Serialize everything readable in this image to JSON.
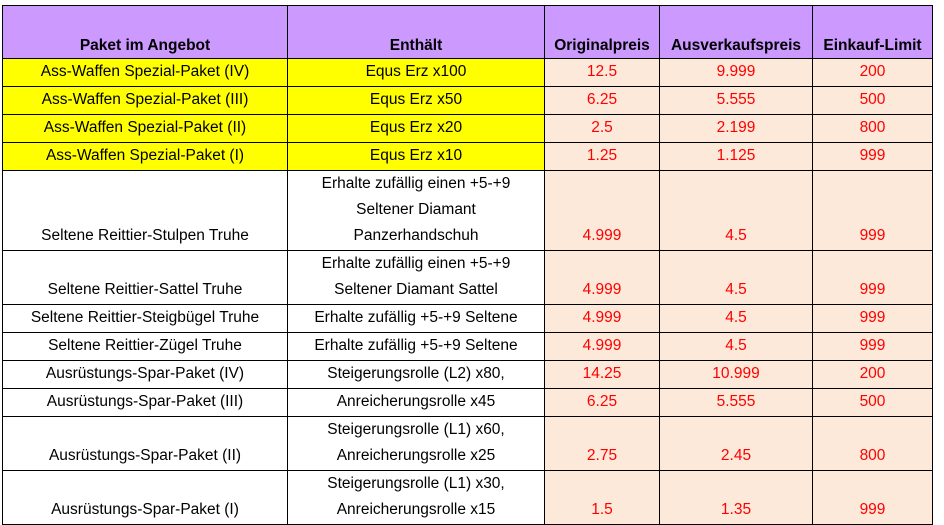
{
  "columns": [
    "Paket im Angebot",
    "Enthält",
    "Originalpreis",
    "Ausverkaufspreis",
    "Einkauf-Limit"
  ],
  "rows": [
    {
      "name": "Ass-Waffen Spezial-Paket (IV)",
      "contents": [
        "Equs Erz x100"
      ],
      "original": "12.5",
      "sale": "9.999",
      "limit": "200",
      "highlight": true
    },
    {
      "name": "Ass-Waffen Spezial-Paket (III)",
      "contents": [
        "Equs Erz x50"
      ],
      "original": "6.25",
      "sale": "5.555",
      "limit": "500",
      "highlight": true
    },
    {
      "name": "Ass-Waffen Spezial-Paket (II)",
      "contents": [
        "Equs Erz x20"
      ],
      "original": "2.5",
      "sale": "2.199",
      "limit": "800",
      "highlight": true
    },
    {
      "name": "Ass-Waffen Spezial-Paket (I)",
      "contents": [
        "Equs Erz x10"
      ],
      "original": "1.25",
      "sale": "1.125",
      "limit": "999",
      "highlight": true
    },
    {
      "name": "Seltene Reittier-Stulpen Truhe",
      "contents": [
        "Erhalte zufällig einen +5-+9",
        "Seltener Diamant",
        "Panzerhandschuh"
      ],
      "original": "4.999",
      "sale": "4.5",
      "limit": "999",
      "highlight": false
    },
    {
      "name": "Seltene Reittier-Sattel Truhe",
      "contents": [
        "Erhalte zufällig einen +5-+9",
        "Seltener Diamant Sattel"
      ],
      "original": "4.999",
      "sale": "4.5",
      "limit": "999",
      "highlight": false
    },
    {
      "name": "Seltene Reittier-Steigbügel Truhe",
      "contents": [
        "Erhalte zufällig +5-+9 Seltene"
      ],
      "original": "4.999",
      "sale": "4.5",
      "limit": "999",
      "highlight": false
    },
    {
      "name": "Seltene Reittier-Zügel Truhe",
      "contents": [
        "Erhalte zufällig +5-+9 Seltene"
      ],
      "original": "4.999",
      "sale": "4.5",
      "limit": "999",
      "highlight": false
    },
    {
      "name": "Ausrüstungs-Spar-Paket (IV)",
      "contents": [
        "Steigerungsrolle (L2) x80,"
      ],
      "original": "14.25",
      "sale": "10.999",
      "limit": "200",
      "highlight": false
    },
    {
      "name": "Ausrüstungs-Spar-Paket (III)",
      "contents": [
        "Anreicherungsrolle x45"
      ],
      "original": "6.25",
      "sale": "5.555",
      "limit": "500",
      "highlight": false
    },
    {
      "name": "Ausrüstungs-Spar-Paket (II)",
      "contents": [
        "Steigerungsrolle (L1) x60,",
        "Anreicherungsrolle x25"
      ],
      "original": "2.75",
      "sale": "2.45",
      "limit": "800",
      "highlight": false
    },
    {
      "name": "Ausrüstungs-Spar-Paket (I)",
      "contents": [
        "Steigerungsrolle (L1) x30,",
        "Anreicherungsrolle x15"
      ],
      "original": "1.5",
      "sale": "1.35",
      "limit": "999",
      "highlight": false
    }
  ]
}
